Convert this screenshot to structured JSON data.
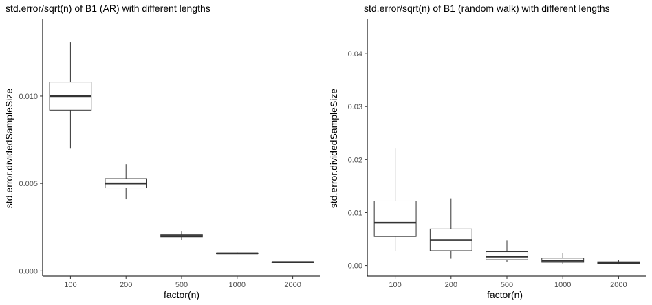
{
  "chart_data": [
    {
      "type": "box",
      "title": "std.error/sqrt(n) of B1 (AR) with different lengths",
      "xlabel": "factor(n)",
      "ylabel": "std.error.dividedSampleSize",
      "categories": [
        "100",
        "200",
        "500",
        "1000",
        "2000"
      ],
      "y_ticks": [
        0.0,
        0.005,
        0.01
      ],
      "y_tick_labels": [
        "0.000",
        "0.005",
        "0.010"
      ],
      "ylim": [
        -0.0003,
        0.0144
      ],
      "boxes": [
        {
          "category": "100",
          "min": 0.007,
          "q1": 0.0092,
          "median": 0.01,
          "q3": 0.0108,
          "max": 0.0131
        },
        {
          "category": "200",
          "min": 0.0041,
          "q1": 0.00475,
          "median": 0.005,
          "q3": 0.00528,
          "max": 0.0061
        },
        {
          "category": "500",
          "min": 0.00175,
          "q1": 0.00195,
          "median": 0.002,
          "q3": 0.00207,
          "max": 0.00225
        },
        {
          "category": "1000",
          "min": 0.00096,
          "q1": 0.00098,
          "median": 0.001,
          "q3": 0.00102,
          "max": 0.00106
        },
        {
          "category": "2000",
          "min": 0.00048,
          "q1": 0.00049,
          "median": 0.0005,
          "q3": 0.00051,
          "max": 0.00052
        }
      ],
      "grid": false
    },
    {
      "type": "box",
      "title": "std.error/sqrt(n) of B1 (random walk) with different lengths",
      "xlabel": "factor(n)",
      "ylabel": "std.error.dividedSampleSize",
      "categories": [
        "100",
        "200",
        "500",
        "1000",
        "2000"
      ],
      "y_ticks": [
        0.0,
        0.01,
        0.02,
        0.03,
        0.04
      ],
      "y_tick_labels": [
        "0.00",
        "0.01",
        "0.02",
        "0.03",
        "0.04"
      ],
      "ylim": [
        -0.002,
        0.0465
      ],
      "boxes": [
        {
          "category": "100",
          "min": 0.0027,
          "q1": 0.0055,
          "median": 0.0081,
          "q3": 0.0122,
          "max": 0.0221
        },
        {
          "category": "200",
          "min": 0.0013,
          "q1": 0.0028,
          "median": 0.0048,
          "q3": 0.0069,
          "max": 0.0127
        },
        {
          "category": "500",
          "min": 0.0007,
          "q1": 0.0011,
          "median": 0.0017,
          "q3": 0.0026,
          "max": 0.0047
        },
        {
          "category": "1000",
          "min": 0.0003,
          "q1": 0.0006,
          "median": 0.0009,
          "q3": 0.0014,
          "max": 0.0024
        },
        {
          "category": "2000",
          "min": 0.0002,
          "q1": 0.0003,
          "median": 0.0005,
          "q3": 0.0007,
          "max": 0.0011
        }
      ],
      "grid": false
    }
  ]
}
